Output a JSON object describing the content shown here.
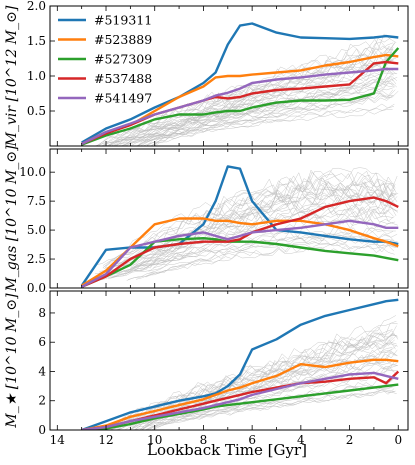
{
  "xlabel": "Lookback Time [Gyr]",
  "legend": [
    "#519311",
    "#523889",
    "#527309",
    "#537488",
    "#541497"
  ],
  "colors": {
    "#519311": "#1f77b4",
    "#523889": "#ff7f0e",
    "#527309": "#2ca02c",
    "#537488": "#d62728",
    "#541497": "#9467bd",
    "background": "#bbbbbb"
  },
  "chart_data": [
    {
      "type": "line",
      "ylabel": "M_vir [10^12 M_⊙]",
      "xlim": [
        14.3,
        -0.4
      ],
      "ylim": [
        0,
        2.0
      ],
      "xticks": [
        "14",
        "12",
        "10",
        "8",
        "6",
        "4",
        "2",
        "0"
      ],
      "yticks": [
        "0.5",
        "1.0",
        "1.5",
        "2.0"
      ],
      "x": [
        13,
        12,
        11,
        10,
        9,
        8,
        7.5,
        7,
        6.5,
        6,
        5,
        4,
        3,
        2,
        1,
        0.5,
        0
      ],
      "series": [
        {
          "name": "#519311",
          "values": [
            0.05,
            0.25,
            0.38,
            0.55,
            0.7,
            0.9,
            1.05,
            1.45,
            1.72,
            1.75,
            1.62,
            1.55,
            1.54,
            1.53,
            1.55,
            1.57,
            1.55
          ]
        },
        {
          "name": "#523889",
          "values": [
            0.03,
            0.2,
            0.3,
            0.5,
            0.7,
            0.85,
            0.98,
            1.0,
            1.0,
            1.02,
            1.05,
            1.08,
            1.15,
            1.2,
            1.27,
            1.3,
            1.28
          ]
        },
        {
          "name": "#527309",
          "values": [
            0.02,
            0.15,
            0.25,
            0.38,
            0.45,
            0.45,
            0.48,
            0.5,
            0.5,
            0.55,
            0.62,
            0.65,
            0.65,
            0.66,
            0.75,
            1.2,
            1.4
          ]
        },
        {
          "name": "#537488",
          "values": [
            0.03,
            0.18,
            0.3,
            0.45,
            0.55,
            0.65,
            0.7,
            0.68,
            0.7,
            0.75,
            0.8,
            0.82,
            0.85,
            0.88,
            1.18,
            1.2,
            1.18
          ]
        },
        {
          "name": "#541497",
          "values": [
            0.03,
            0.2,
            0.32,
            0.45,
            0.55,
            0.65,
            0.72,
            0.76,
            0.82,
            0.9,
            0.95,
            0.98,
            1.02,
            1.05,
            1.08,
            1.1,
            1.1
          ]
        }
      ]
    },
    {
      "type": "line",
      "ylabel": "M_gas [10^10 M_⊙]",
      "xlim": [
        14.3,
        -0.4
      ],
      "ylim": [
        0,
        12
      ],
      "xticks": [
        "14",
        "12",
        "10",
        "8",
        "6",
        "4",
        "2",
        "0"
      ],
      "yticks": [
        "0.0",
        "2.5",
        "5.0",
        "7.5",
        "10.0"
      ],
      "x": [
        13,
        12,
        11,
        10,
        9,
        8,
        7.5,
        7,
        6.5,
        6,
        5,
        4,
        3,
        2,
        1,
        0.5,
        0
      ],
      "series": [
        {
          "name": "#519311",
          "values": [
            0.2,
            3.3,
            3.5,
            3.5,
            3.8,
            5.5,
            7.5,
            10.5,
            10.3,
            7.5,
            5.0,
            4.8,
            4.5,
            4.2,
            4.0,
            4.0,
            3.8
          ]
        },
        {
          "name": "#523889",
          "values": [
            0.2,
            1.5,
            3.5,
            5.5,
            6.0,
            6.0,
            5.8,
            5.8,
            5.6,
            5.5,
            5.8,
            5.8,
            5.5,
            5.0,
            4.3,
            4.0,
            3.6
          ]
        },
        {
          "name": "#527309",
          "values": [
            0.1,
            1.0,
            2.0,
            4.0,
            4.2,
            4.3,
            4.2,
            4.0,
            4.0,
            4.0,
            3.8,
            3.5,
            3.2,
            3.0,
            2.8,
            2.6,
            2.4
          ]
        },
        {
          "name": "#537488",
          "values": [
            0.1,
            1.0,
            2.5,
            3.5,
            3.8,
            4.0,
            4.0,
            4.0,
            4.2,
            4.8,
            5.5,
            6.0,
            7.0,
            7.5,
            7.8,
            7.5,
            7.0
          ]
        },
        {
          "name": "#541497",
          "values": [
            0.1,
            1.2,
            3.5,
            4.0,
            4.5,
            4.8,
            4.5,
            4.2,
            4.5,
            4.8,
            5.0,
            5.2,
            5.5,
            5.8,
            5.5,
            5.2,
            5.2
          ]
        }
      ]
    },
    {
      "type": "line",
      "ylabel": "M_★ [10^10 M_⊙]",
      "xlim": [
        14.3,
        -0.4
      ],
      "ylim": [
        0,
        9.5
      ],
      "xticks": [
        "14",
        "12",
        "10",
        "8",
        "6",
        "4",
        "2",
        "0"
      ],
      "yticks": [
        "0",
        "2",
        "4",
        "6",
        "8"
      ],
      "x": [
        13,
        12,
        11,
        10,
        9,
        8,
        7.5,
        7,
        6.5,
        6,
        5,
        4,
        3,
        2,
        1,
        0.5,
        0
      ],
      "series": [
        {
          "name": "#519311",
          "values": [
            0.0,
            0.6,
            1.2,
            1.6,
            2.0,
            2.3,
            2.5,
            3.0,
            3.8,
            5.5,
            6.2,
            7.2,
            7.8,
            8.2,
            8.6,
            8.8,
            8.9
          ]
        },
        {
          "name": "#523889",
          "values": [
            0.0,
            0.3,
            0.9,
            1.3,
            1.7,
            2.1,
            2.4,
            2.7,
            2.9,
            3.2,
            3.7,
            4.5,
            4.3,
            4.6,
            4.8,
            4.8,
            4.7
          ]
        },
        {
          "name": "#527309",
          "values": [
            0.0,
            0.1,
            0.4,
            0.8,
            1.1,
            1.4,
            1.6,
            1.7,
            1.8,
            1.9,
            2.1,
            2.3,
            2.5,
            2.7,
            2.9,
            3.0,
            3.1
          ]
        },
        {
          "name": "#537488",
          "values": [
            0.0,
            0.2,
            0.6,
            1.0,
            1.4,
            1.8,
            2.0,
            2.2,
            2.4,
            2.6,
            2.9,
            3.2,
            3.3,
            3.5,
            3.6,
            3.2,
            4.0
          ]
        },
        {
          "name": "#541497",
          "values": [
            0.0,
            0.2,
            0.6,
            0.9,
            1.2,
            1.5,
            1.7,
            1.9,
            2.1,
            2.4,
            2.8,
            3.2,
            3.5,
            3.8,
            3.9,
            3.7,
            3.5
          ]
        }
      ]
    }
  ]
}
